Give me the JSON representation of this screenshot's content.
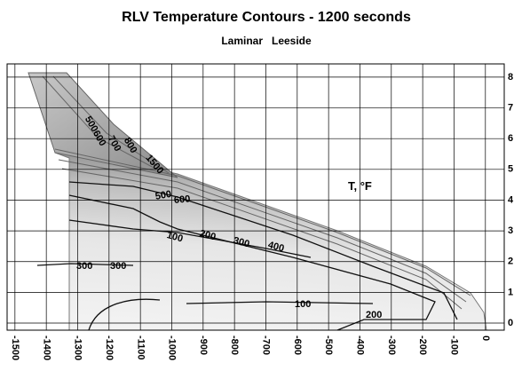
{
  "chart_data": {
    "type": "contour",
    "title": "RLV Temperature Contours - 1200 seconds",
    "subtitle": "Laminar   Leeside",
    "legend_label": "T, °F",
    "xlim": [
      -1525,
      60
    ],
    "ylim": [
      -0.23,
      8.43
    ],
    "xticks": [
      -1500,
      -1400,
      -1300,
      -1200,
      -1100,
      -1000,
      -900,
      -800,
      -700,
      -600,
      -500,
      -400,
      -300,
      -200,
      -100,
      0
    ],
    "yticks": [
      0,
      1,
      2,
      3,
      4,
      5,
      6,
      7,
      8
    ],
    "grid": true,
    "contour_labels": [
      500,
      600,
      700,
      800,
      1500,
      500,
      600,
      100,
      200,
      300,
      400,
      300,
      300,
      100,
      200
    ]
  }
}
